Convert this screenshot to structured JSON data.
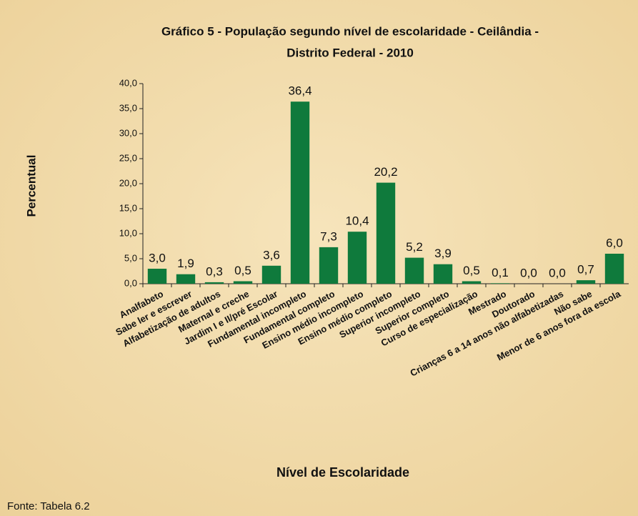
{
  "chart_data": {
    "type": "bar",
    "title": [
      "Gráfico 5 - População segundo nível de escolaridade - Ceilândia -",
      "Distrito Federal - 2010"
    ],
    "x_label": "Nível de Escolaridade",
    "y_label": "Percentual",
    "source": "Fonte: Tabela 6.2",
    "categories": [
      "Analfabeto",
      "Sabe ler e escrever",
      "Alfabetização de adultos",
      "Maternal e creche",
      "Jardim I e II/pré Escolar",
      "Fundamental incompleto",
      "Fundamental completo",
      "Ensino médio incompleto",
      "Ensino médio completo",
      "Superior incompleto",
      "Superior completo",
      "Curso de especialização",
      "Mestrado",
      "Doutorado",
      "Crianças 6 a 14 anos não alfabetizadas",
      "Não sabe",
      "Menor de 6 anos fora da escola"
    ],
    "values": [
      3.0,
      1.9,
      0.3,
      0.5,
      3.6,
      36.4,
      7.3,
      10.4,
      20.2,
      5.2,
      3.9,
      0.5,
      0.1,
      0.0,
      0.0,
      0.7,
      6.0
    ],
    "value_labels": [
      "3,0",
      "1,9",
      "0,3",
      "0,5",
      "3,6",
      "36,4",
      "7,3",
      "10,4",
      "20,2",
      "5,2",
      "3,9",
      "0,5",
      "0,1",
      "0,0",
      "0,0",
      "0,7",
      "6,0"
    ],
    "color": "#0f7a3c",
    "ylim": [
      0,
      40
    ],
    "yticks": [
      {
        "value": 0,
        "label": "0,0"
      },
      {
        "value": 5,
        "label": "5,0"
      },
      {
        "value": 10,
        "label": "10,0"
      },
      {
        "value": 15,
        "label": "15,0"
      },
      {
        "value": 20,
        "label": "20,0"
      },
      {
        "value": 25,
        "label": "25,0"
      },
      {
        "value": 30,
        "label": "30,0"
      },
      {
        "value": 35,
        "label": "35,0"
      },
      {
        "value": 40,
        "label": "40,0"
      }
    ],
    "grid": false
  }
}
